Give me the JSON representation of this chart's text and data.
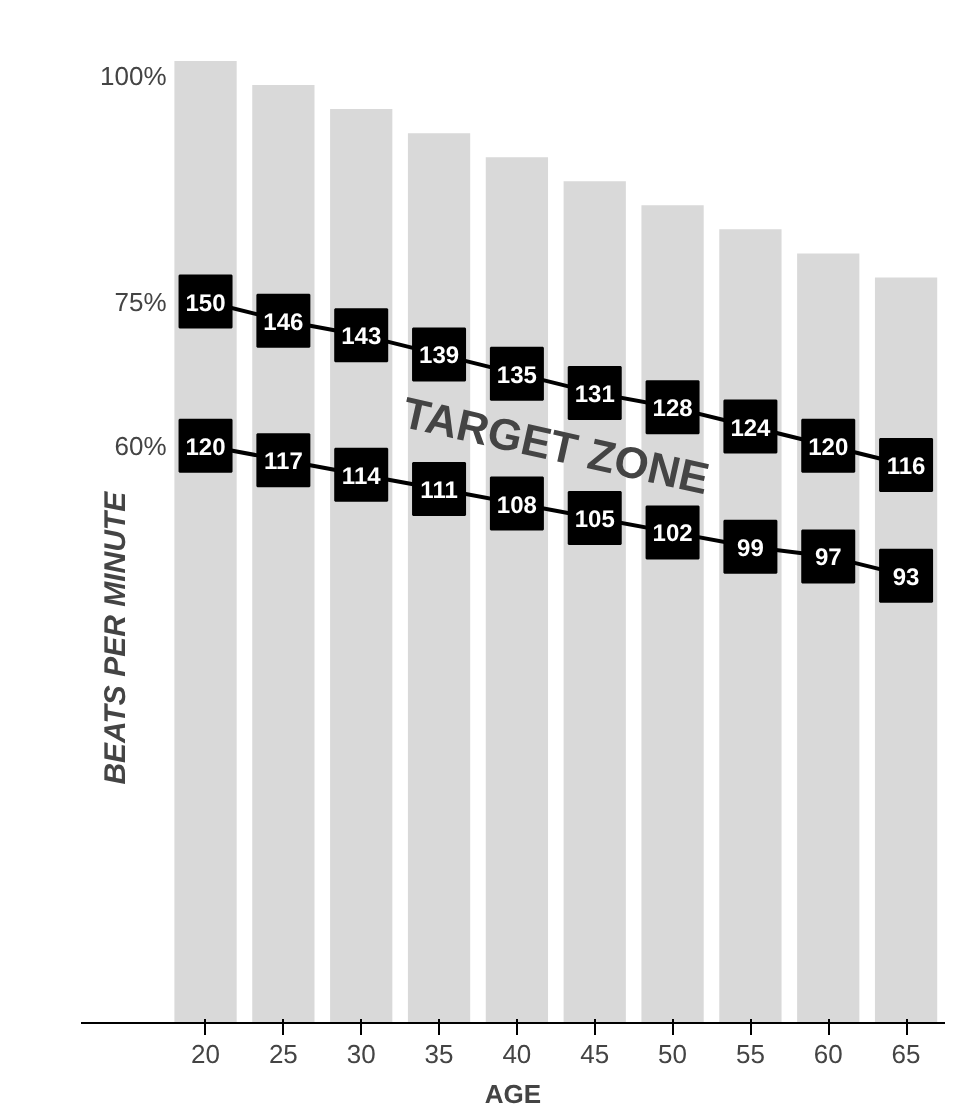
{
  "chart_data": {
    "type": "line",
    "xlabel": "AGE",
    "ylabel": "BEATS PER MINUTE",
    "categories": [
      "20",
      "25",
      "30",
      "35",
      "40",
      "45",
      "50",
      "55",
      "60",
      "65"
    ],
    "ylim": [
      0,
      200
    ],
    "tick_labels": "x",
    "marker": "square",
    "annotations": [
      "TARGET ZONE"
    ],
    "series": [
      {
        "name": "100%",
        "type": "bar",
        "color": "#d9d9d9",
        "values": [
          200,
          195,
          190,
          185,
          180,
          175,
          170,
          165,
          160,
          155
        ]
      },
      {
        "name": "75%",
        "color": "#000000",
        "values": [
          150,
          146,
          143,
          139,
          135,
          131,
          128,
          124,
          120,
          116
        ],
        "value_labels": [
          "150",
          "146",
          "143",
          "139",
          "135",
          "131",
          "128",
          "124",
          "120",
          "116"
        ]
      },
      {
        "name": "60%",
        "color": "#000000",
        "values": [
          120,
          117,
          114,
          111,
          108,
          105,
          102,
          99,
          97,
          93
        ],
        "value_labels": [
          "120",
          "117",
          "114",
          "111",
          "108",
          "105",
          "102",
          "99",
          "97",
          "93"
        ]
      }
    ]
  }
}
